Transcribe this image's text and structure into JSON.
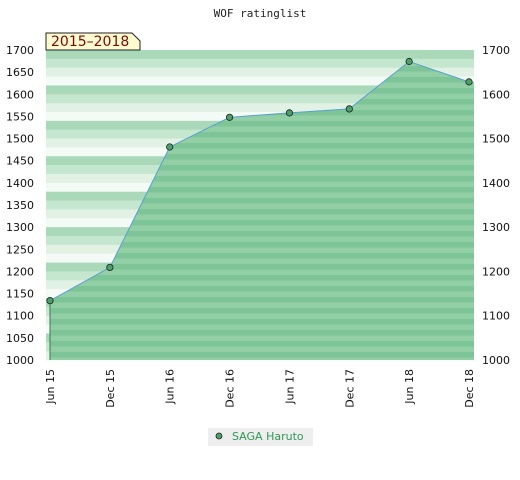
{
  "chart_data": {
    "type": "area",
    "title": "WOF ratinglist",
    "badge": "2015–2018",
    "x": [
      "Jun 15",
      "Dec 15",
      "Jun 16",
      "Dec 16",
      "Jun 17",
      "Dec 17",
      "Jun 18",
      "Dec 18"
    ],
    "series": [
      {
        "name": "SAGA Haruto",
        "values": [
          1134,
          1209,
          1481,
          1548,
          1558,
          1567,
          1674,
          1628
        ]
      }
    ],
    "ylim": [
      1000,
      1700
    ],
    "yticks": [
      1000,
      1050,
      1100,
      1150,
      1200,
      1250,
      1300,
      1350,
      1400,
      1450,
      1500,
      1550,
      1600,
      1650,
      1700
    ],
    "yticks_right": [
      1000,
      1100,
      1200,
      1300,
      1400,
      1500,
      1600,
      1700
    ],
    "grid": true,
    "legend": "bottom-center",
    "colors": {
      "fill": "#7dc496",
      "line": "#5a9fd4",
      "marker": "#4aa06a",
      "badge_bg": "#fefbd0"
    }
  }
}
